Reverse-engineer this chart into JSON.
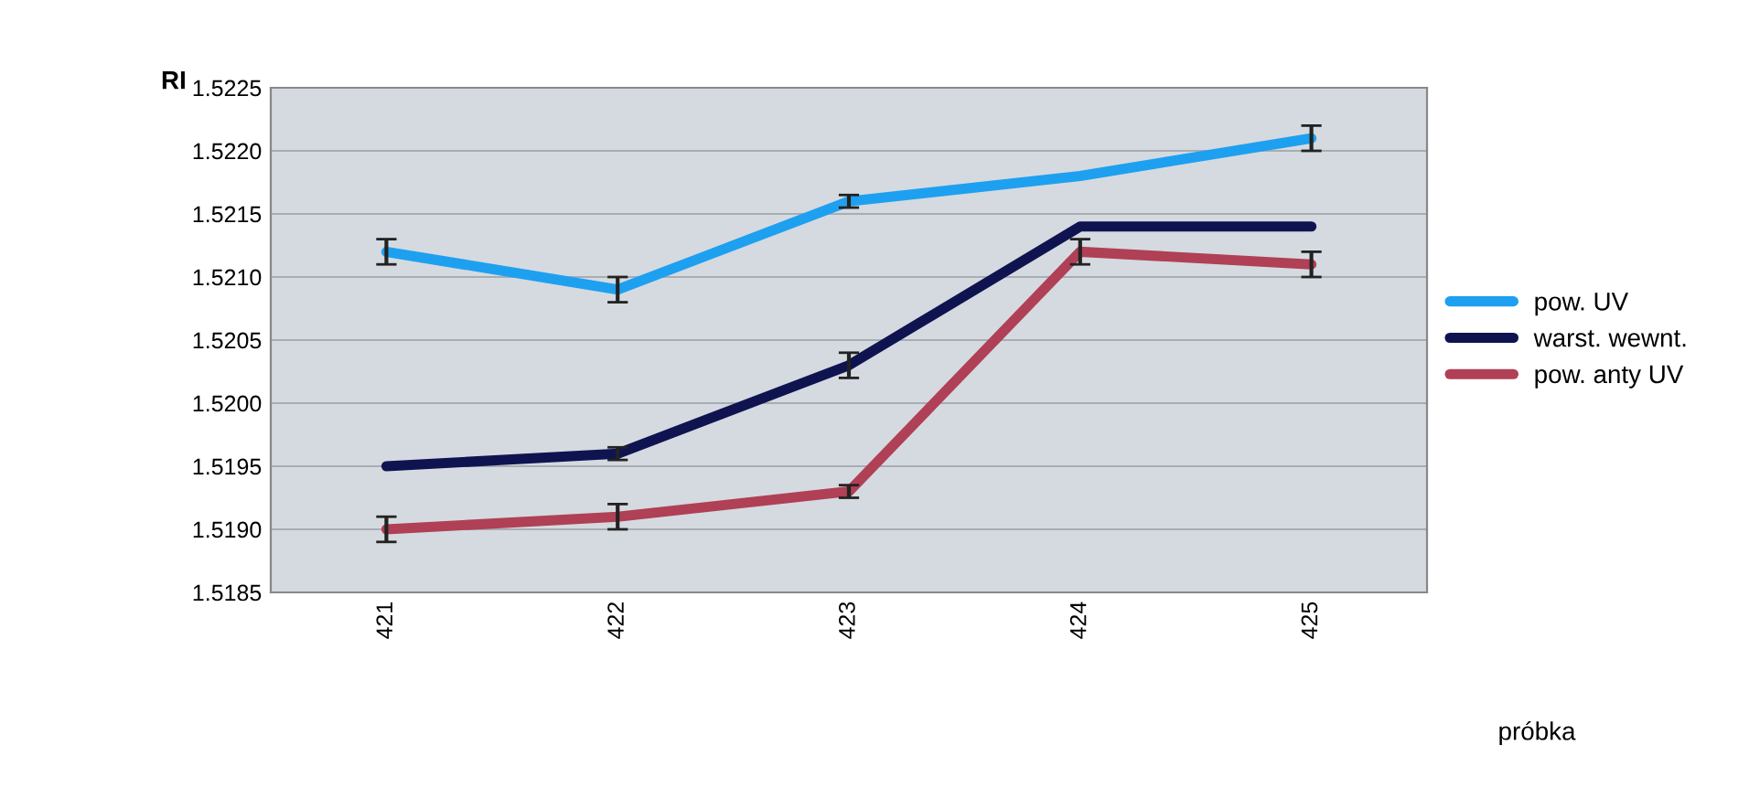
{
  "chart_data": {
    "type": "line",
    "ylabel": "RI",
    "xlabel": "próbka",
    "categories": [
      "421",
      "422",
      "423",
      "424",
      "425"
    ],
    "series": [
      {
        "name": "pow. UV",
        "color": "#1ea0f0",
        "values": [
          1.5212,
          1.5209,
          1.5216,
          1.5218,
          1.5221
        ],
        "errors": [
          0.0001,
          0.0001,
          5e-05,
          null,
          0.0001
        ]
      },
      {
        "name": "warst. wewnt.",
        "color": "#0f1450",
        "values": [
          1.5195,
          1.5196,
          1.5203,
          1.5214,
          1.5214
        ],
        "errors": [
          null,
          5e-05,
          0.0001,
          null,
          null
        ]
      },
      {
        "name": "pow. anty UV",
        "color": "#b04055",
        "values": [
          1.519,
          1.5191,
          1.5193,
          1.5212,
          1.5211
        ],
        "errors": [
          0.0001,
          0.0001,
          5e-05,
          0.0001,
          0.0001
        ]
      }
    ],
    "ylim": [
      1.5185,
      1.5225
    ],
    "yticks": [
      1.5185,
      {
        "value": 1.519,
        "label": "1.5190"
      },
      1.5195,
      {
        "value": 1.52,
        "label": "1.5200"
      },
      1.5205,
      {
        "value": 1.521,
        "label": "1.5210"
      },
      1.5215,
      {
        "value": 1.522,
        "label": "1.5220"
      },
      1.5225
    ],
    "grid": "y",
    "legend": "right",
    "marker": "none",
    "line_style": "solid"
  }
}
